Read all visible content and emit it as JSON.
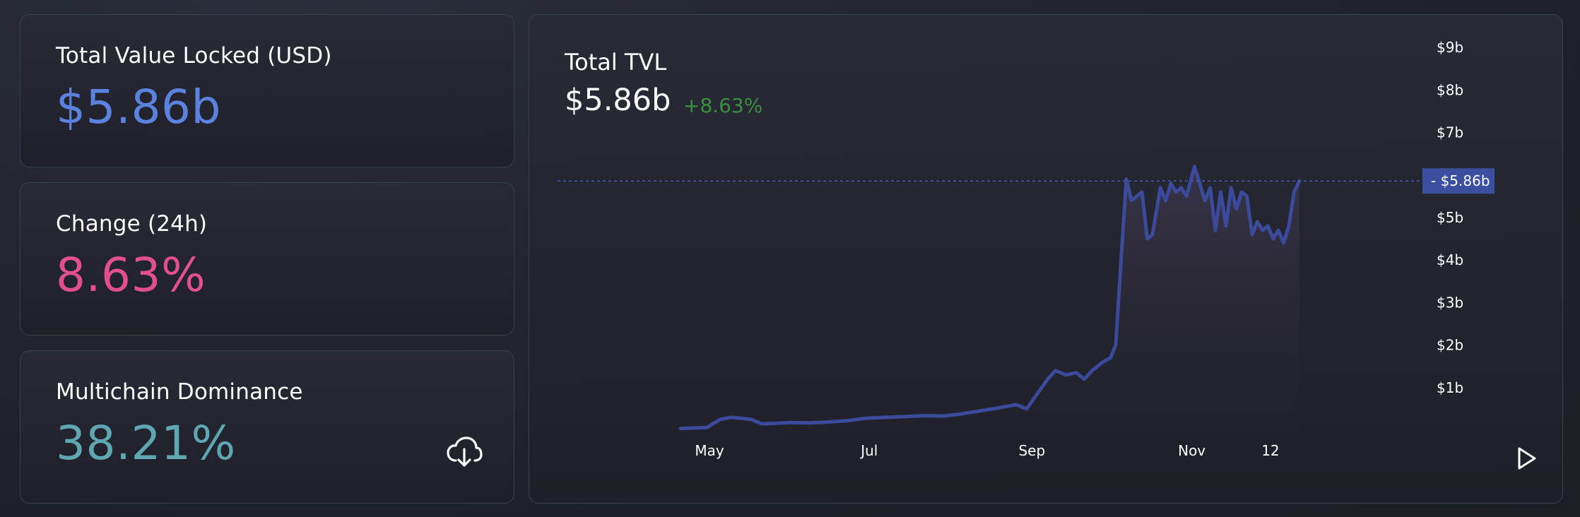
{
  "stats": {
    "tvl": {
      "label": "Total Value Locked (USD)",
      "value": "$5.86b",
      "color": "#5b82de"
    },
    "change": {
      "label": "Change (24h)",
      "value": "8.63%",
      "color": "#e1508d"
    },
    "dominance": {
      "label": "Multichain Dominance",
      "value": "38.21%",
      "color": "#5ea7b1"
    }
  },
  "icons": {
    "download": "cloud-download-icon",
    "play": "play-icon"
  },
  "chart": {
    "title": "Total TVL",
    "value": "$5.86b",
    "change": "+8.63%",
    "current_marker": "$5.86b",
    "line_color": "#3b4a9a",
    "marker_color": "#3a4fa0"
  },
  "chart_data": {
    "type": "area",
    "title": "Total TVL",
    "xlabel": "",
    "ylabel": "",
    "ylim": [
      0,
      9
    ],
    "y_unit": "USD billions",
    "y_ticks": [
      "$1b",
      "$2b",
      "$3b",
      "$4b",
      "$5b",
      "$7b",
      "$8b",
      "$9b"
    ],
    "y_tick_values": [
      1,
      2,
      3,
      4,
      5,
      7,
      8,
      9
    ],
    "x_ticks": [
      "May",
      "Jul",
      "Sep",
      "Nov",
      "12"
    ],
    "x_tick_dates": [
      "2022-05-01",
      "2022-07-01",
      "2022-09-01",
      "2022-11-01",
      "2022-12-01"
    ],
    "reference_line": {
      "value": 5.86,
      "label": "$5.86b",
      "style": "dashed"
    },
    "grid": false,
    "series": [
      {
        "values": [
          [
            "2022-04-20",
            0.04
          ],
          [
            "2022-04-25",
            0.05
          ],
          [
            "2022-04-30",
            0.06
          ],
          [
            "2022-05-05",
            0.25
          ],
          [
            "2022-05-09",
            0.3
          ],
          [
            "2022-05-13",
            0.28
          ],
          [
            "2022-05-17",
            0.25
          ],
          [
            "2022-05-21",
            0.15
          ],
          [
            "2022-05-26",
            0.16
          ],
          [
            "2022-06-01",
            0.18
          ],
          [
            "2022-06-08",
            0.17
          ],
          [
            "2022-06-15",
            0.19
          ],
          [
            "2022-06-22",
            0.22
          ],
          [
            "2022-06-30",
            0.28
          ],
          [
            "2022-07-07",
            0.3
          ],
          [
            "2022-07-15",
            0.32
          ],
          [
            "2022-07-22",
            0.34
          ],
          [
            "2022-07-29",
            0.33
          ],
          [
            "2022-08-05",
            0.38
          ],
          [
            "2022-08-12",
            0.45
          ],
          [
            "2022-08-19",
            0.52
          ],
          [
            "2022-08-26",
            0.6
          ],
          [
            "2022-08-30",
            0.5
          ],
          [
            "2022-09-03",
            0.85
          ],
          [
            "2022-09-07",
            1.2
          ],
          [
            "2022-09-10",
            1.4
          ],
          [
            "2022-09-14",
            1.3
          ],
          [
            "2022-09-18",
            1.35
          ],
          [
            "2022-09-21",
            1.2
          ],
          [
            "2022-09-24",
            1.4
          ],
          [
            "2022-09-28",
            1.6
          ],
          [
            "2022-10-01",
            1.7
          ],
          [
            "2022-10-03",
            2.0
          ],
          [
            "2022-10-05",
            4.0
          ],
          [
            "2022-10-07",
            5.9
          ],
          [
            "2022-10-09",
            5.4
          ],
          [
            "2022-10-11",
            5.5
          ],
          [
            "2022-10-13",
            5.6
          ],
          [
            "2022-10-15",
            4.5
          ],
          [
            "2022-10-17",
            4.6
          ],
          [
            "2022-10-20",
            5.7
          ],
          [
            "2022-10-22",
            5.4
          ],
          [
            "2022-10-24",
            5.8
          ],
          [
            "2022-10-26",
            5.6
          ],
          [
            "2022-10-28",
            5.7
          ],
          [
            "2022-10-30",
            5.5
          ],
          [
            "2022-11-02",
            6.2
          ],
          [
            "2022-11-04",
            5.8
          ],
          [
            "2022-11-06",
            5.4
          ],
          [
            "2022-11-08",
            5.7
          ],
          [
            "2022-11-10",
            4.7
          ],
          [
            "2022-11-12",
            5.6
          ],
          [
            "2022-11-14",
            4.8
          ],
          [
            "2022-11-16",
            5.7
          ],
          [
            "2022-11-18",
            5.2
          ],
          [
            "2022-11-20",
            5.6
          ],
          [
            "2022-11-22",
            5.5
          ],
          [
            "2022-11-24",
            4.6
          ],
          [
            "2022-11-26",
            4.9
          ],
          [
            "2022-11-28",
            4.7
          ],
          [
            "2022-11-30",
            4.8
          ],
          [
            "2022-12-02",
            4.5
          ],
          [
            "2022-12-04",
            4.7
          ],
          [
            "2022-12-06",
            4.4
          ],
          [
            "2022-12-08",
            4.8
          ],
          [
            "2022-12-10",
            5.6
          ],
          [
            "2022-12-12",
            5.86
          ]
        ]
      }
    ]
  }
}
